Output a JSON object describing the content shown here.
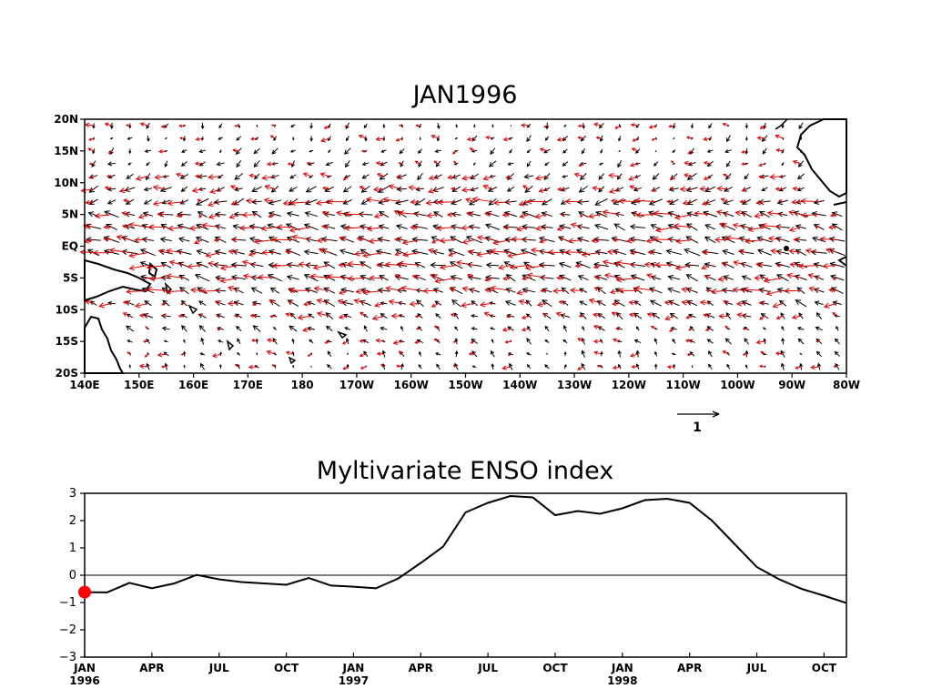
{
  "map": {
    "title": "JAN1996",
    "x_ticks": [
      "140E",
      "150E",
      "160E",
      "170E",
      "180",
      "170W",
      "160W",
      "150W",
      "140W",
      "130W",
      "120W",
      "110W",
      "100W",
      "90W",
      "80W"
    ],
    "y_ticks": [
      "20N",
      "15N",
      "10N",
      "5N",
      "EQ",
      "5S",
      "10S",
      "15S",
      "20S"
    ],
    "reference_vector_label": "1",
    "colors": {
      "observed": "#000000",
      "anomaly": "#e00000"
    }
  },
  "chart_data": {
    "type": "line",
    "title": "Myltivariate ENSO index",
    "xlabel": "",
    "ylabel": "",
    "ylim": [
      -3,
      3
    ],
    "y_ticks": [
      "3",
      "2",
      "1",
      "0",
      "−1",
      "−2",
      "−3"
    ],
    "x_ticks": [
      {
        "month": "JAN",
        "year": "1996"
      },
      {
        "month": "APR",
        "year": ""
      },
      {
        "month": "JUL",
        "year": ""
      },
      {
        "month": "OCT",
        "year": ""
      },
      {
        "month": "JAN",
        "year": "1997"
      },
      {
        "month": "APR",
        "year": ""
      },
      {
        "month": "JUL",
        "year": ""
      },
      {
        "month": "OCT",
        "year": ""
      },
      {
        "month": "JAN",
        "year": "1998"
      },
      {
        "month": "APR",
        "year": ""
      },
      {
        "month": "JUL",
        "year": ""
      },
      {
        "month": "OCT",
        "year": ""
      }
    ],
    "series": [
      {
        "values": [
          -0.62,
          -0.63,
          -0.28,
          -0.48,
          -0.3,
          0.01,
          -0.15,
          -0.25,
          -0.3,
          -0.35,
          -0.1,
          -0.38,
          -0.42,
          -0.48,
          -0.12,
          0.45,
          1.05,
          2.3,
          2.65,
          2.9,
          2.85,
          2.2,
          2.35,
          2.25,
          2.45,
          2.75,
          2.8,
          2.65,
          2.0,
          1.15,
          0.3,
          -0.15,
          -0.5,
          -0.75,
          -1.02
        ]
      }
    ],
    "current_marker": {
      "index": 0,
      "value": -0.62,
      "color": "#ff0000"
    },
    "zero_line": true
  }
}
